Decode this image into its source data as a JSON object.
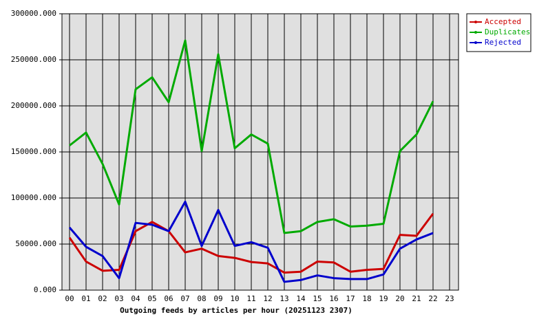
{
  "chart_data": {
    "type": "line",
    "title": "Outgoing feeds by articles per hour (20251123 2307)",
    "categories": [
      "00",
      "01",
      "02",
      "03",
      "04",
      "05",
      "06",
      "07",
      "08",
      "09",
      "10",
      "11",
      "12",
      "13",
      "14",
      "15",
      "16",
      "17",
      "18",
      "19",
      "20",
      "21",
      "22",
      "23"
    ],
    "series": [
      {
        "name": "Accepted",
        "color": "#cc0000",
        "values": [
          57000,
          31000,
          21000,
          22000,
          64000,
          74000,
          64000,
          41000,
          45000,
          37000,
          35000,
          30500,
          29000,
          19000,
          20000,
          31000,
          30000,
          20000,
          22000,
          23000,
          60000,
          59000,
          83000,
          null
        ]
      },
      {
        "name": "Duplicates",
        "color": "#00aa00",
        "values": [
          157000,
          171000,
          137000,
          93000,
          218000,
          231000,
          204000,
          271000,
          151000,
          256000,
          154000,
          169000,
          159000,
          62000,
          64000,
          74000,
          77000,
          69000,
          70000,
          72000,
          151000,
          169000,
          205000,
          null
        ]
      },
      {
        "name": "Rejected",
        "color": "#0000cc",
        "values": [
          68000,
          47000,
          37000,
          13000,
          73000,
          71000,
          64000,
          96000,
          48000,
          87000,
          48000,
          52000,
          46000,
          9000,
          11000,
          16000,
          13000,
          12000,
          12000,
          17000,
          45000,
          55000,
          62000,
          null
        ]
      }
    ],
    "ylim": [
      0,
      300000
    ],
    "yticks": [
      {
        "value": 0,
        "label": "0.000"
      },
      {
        "value": 50000,
        "label": "50000.000"
      },
      {
        "value": 100000,
        "label": "100000.000"
      },
      {
        "value": 150000,
        "label": "150000.000"
      },
      {
        "value": 200000,
        "label": "200000.000"
      },
      {
        "value": 250000,
        "label": "250000.000"
      },
      {
        "value": 300000,
        "label": "300000.000"
      }
    ],
    "grid": true,
    "legend": "top-right"
  }
}
